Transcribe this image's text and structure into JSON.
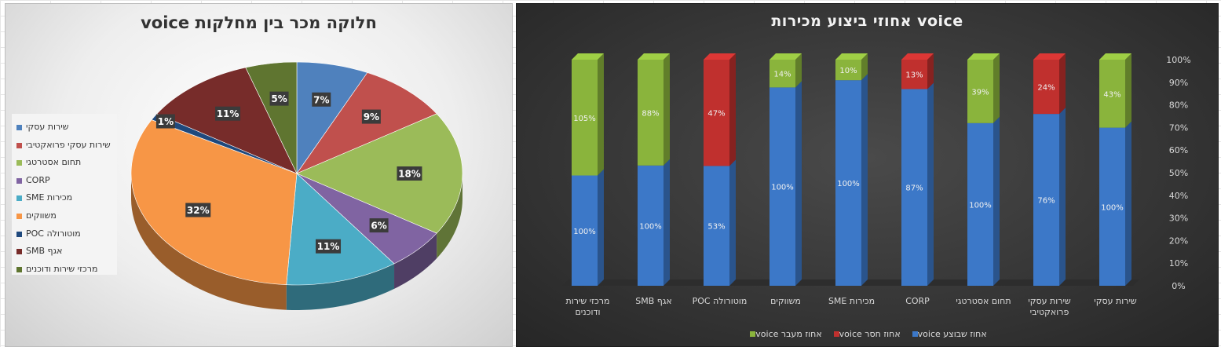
{
  "charts": {
    "pie": {
      "title": "voice חלוקה מכר בין מחלקות",
      "type": "pie"
    },
    "bar": {
      "title": "אחוזי ביצוע מכירות voice",
      "type": "bar"
    }
  },
  "chart_data": [
    {
      "type": "pie",
      "title": "voice חלוקה מכר בין מחלקות",
      "slices": [
        {
          "label": "שירות עסקי",
          "value": 7,
          "display": "7%",
          "color": "#4f81bd"
        },
        {
          "label": "שירות עסקי פרואקטיבי",
          "value": 9,
          "display": "9%",
          "color": "#c0504d"
        },
        {
          "label": "תחום אסטרטגי",
          "value": 18,
          "display": "18%",
          "color": "#9bbb59"
        },
        {
          "label": "CORP",
          "value": 6,
          "display": "6%",
          "color": "#8064a2"
        },
        {
          "label": "מכירות SME",
          "value": 11,
          "display": "11%",
          "color": "#4bacc6"
        },
        {
          "label": "משווקים",
          "value": 32,
          "display": "32%",
          "color": "#f79646"
        },
        {
          "label": "מוטורולה POC",
          "value": 1,
          "display": "1%",
          "color": "#1f497d"
        },
        {
          "label": "אגף SMB",
          "value": 11,
          "display": "11%",
          "color": "#772c2a"
        },
        {
          "label": "מרכזי שירות ודוכנים",
          "value": 5,
          "display": "5%",
          "color": "#5f7530"
        }
      ],
      "legend_position": "left"
    },
    {
      "type": "bar",
      "stacked": true,
      "title": "אחוזי ביצוע מכירות voice",
      "categories": [
        "מרכזי שירות ודוכנים",
        "אגף SMB",
        "מוטורולה POC",
        "משווקים",
        "מכירות SME",
        "CORP",
        "תחום אסטרטגי",
        "שירות עסקי פרואקטיבי",
        "שירות עסקי"
      ],
      "category_lines": [
        [
          "מרכזי שירות",
          "ודוכנים"
        ],
        [
          "אגף SMB"
        ],
        [
          "מוטורולה POC"
        ],
        [
          "משווקים"
        ],
        [
          "מכירות SME"
        ],
        [
          "CORP"
        ],
        [
          "תחום אסטרטגי"
        ],
        [
          "שירות עסקי",
          "פרואקטיבי"
        ],
        [
          "שירות עסקי"
        ]
      ],
      "series": [
        {
          "name": "אחוז שבוצע voice",
          "color": "#3c78c8",
          "values": [
            100,
            100,
            53,
            100,
            100,
            87,
            100,
            76,
            100
          ],
          "labels": [
            "100%",
            "100%",
            "53%",
            "100%",
            "100%",
            "87%",
            "100%",
            "76%",
            "100%"
          ]
        },
        {
          "name": "אחוז חסר voice",
          "color": "#c0302e",
          "values": [
            0,
            0,
            47,
            0,
            0,
            13,
            0,
            24,
            0
          ],
          "labels": [
            "",
            "",
            "47%",
            "",
            "",
            "13%",
            "",
            "24%",
            ""
          ]
        },
        {
          "name": "אחוז מעבר voice",
          "color": "#8ab43c",
          "values": [
            105,
            88,
            0,
            14,
            10,
            0,
            39,
            0,
            43
          ],
          "labels": [
            "105%",
            "88%",
            "",
            "14%",
            "10%",
            "",
            "39%",
            "",
            "43%"
          ]
        }
      ],
      "y_ticks": [
        "100%",
        "90%",
        "80%",
        "70%",
        "60%",
        "50%",
        "40%",
        "30%",
        "20%",
        "10%",
        "0%"
      ],
      "y_axis_position": "right",
      "legend_position": "bottom"
    }
  ]
}
